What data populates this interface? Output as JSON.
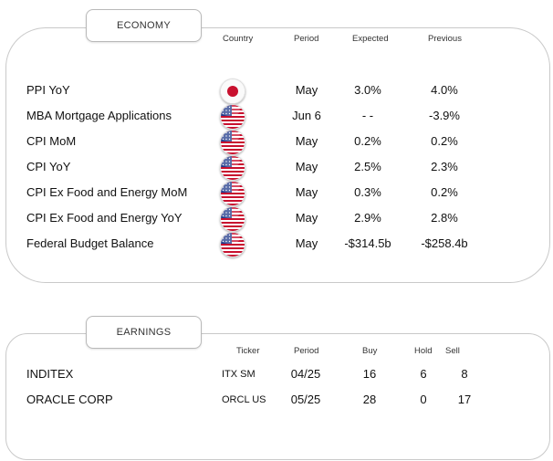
{
  "economy": {
    "title": "ECONOMY",
    "headers": {
      "country": "Country",
      "period": "Period",
      "expected": "Expected",
      "previous": "Previous"
    },
    "rows": [
      {
        "name": "PPI YoY",
        "flag": "jp-flag-icon",
        "period": "May",
        "expected": "3.0%",
        "previous": "4.0%"
      },
      {
        "name": "MBA Mortgage Applications",
        "flag": "us-flag-icon",
        "period": "Jun 6",
        "expected": "- -",
        "previous": "-3.9%"
      },
      {
        "name": "CPI MoM",
        "flag": "us-flag-icon",
        "period": "May",
        "expected": "0.2%",
        "previous": "0.2%"
      },
      {
        "name": "CPI YoY",
        "flag": "us-flag-icon",
        "period": "May",
        "expected": "2.5%",
        "previous": "2.3%"
      },
      {
        "name": "CPI Ex Food and Energy MoM",
        "flag": "us-flag-icon",
        "period": "May",
        "expected": "0.3%",
        "previous": "0.2%"
      },
      {
        "name": "CPI Ex Food and Energy YoY",
        "flag": "us-flag-icon",
        "period": "May",
        "expected": "2.9%",
        "previous": "2.8%"
      },
      {
        "name": "Federal Budget Balance",
        "flag": "us-flag-icon",
        "period": "May",
        "expected": "-$314.5b",
        "previous": "-$258.4b"
      }
    ]
  },
  "earnings": {
    "title": "EARNINGS",
    "headers": {
      "ticker": "Ticker",
      "period": "Period",
      "buy": "Buy",
      "hold": "Hold",
      "sell": "Sell"
    },
    "rows": [
      {
        "name": "INDITEX",
        "ticker": "ITX SM",
        "period": "04/25",
        "buy": "16",
        "hold": "6",
        "sell": "8"
      },
      {
        "name": "ORACLE CORP",
        "ticker": "ORCL US",
        "period": "05/25",
        "buy": "28",
        "hold": "0",
        "sell": "17"
      }
    ]
  },
  "colors": {
    "border": "#c9c9c9",
    "us_red": "#c8102e",
    "us_blue": "#1f3a8a",
    "jp_red": "#c8102e"
  }
}
